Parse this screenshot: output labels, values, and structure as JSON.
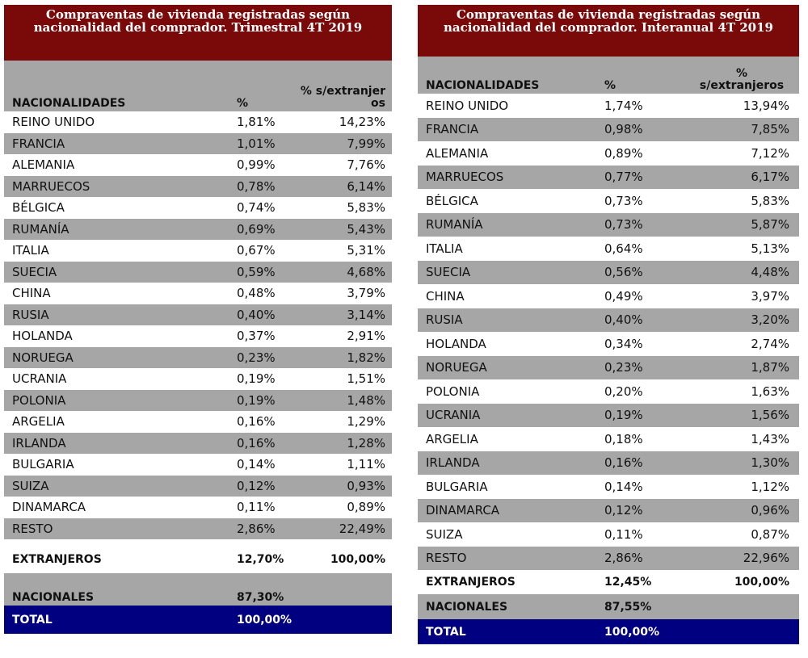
{
  "left": {
    "title": "Compraventas de vivienda registradas según nacionalidad del comprador. Trimestral 4T 2019",
    "headers": [
      "NACIONALIDADES",
      "%",
      "% s/extranjer os"
    ],
    "rows": [
      [
        "REINO UNIDO",
        "1,81%",
        "14,23%"
      ],
      [
        "FRANCIA",
        "1,01%",
        "7,99%"
      ],
      [
        "ALEMANIA",
        "0,99%",
        "7,76%"
      ],
      [
        "MARRUECOS",
        "0,78%",
        "6,14%"
      ],
      [
        "BÉLGICA",
        "0,74%",
        "5,83%"
      ],
      [
        "RUMANÍA",
        "0,69%",
        "5,43%"
      ],
      [
        "ITALIA",
        "0,67%",
        "5,31%"
      ],
      [
        "SUECIA",
        "0,59%",
        "4,68%"
      ],
      [
        "CHINA",
        "0,48%",
        "3,79%"
      ],
      [
        "RUSIA",
        "0,40%",
        "3,14%"
      ],
      [
        "HOLANDA",
        "0,37%",
        "2,91%"
      ],
      [
        "NORUEGA",
        "0,23%",
        "1,82%"
      ],
      [
        "UCRANIA",
        "0,19%",
        "1,51%"
      ],
      [
        "POLONIA",
        "0,19%",
        "1,48%"
      ],
      [
        "ARGELIA",
        "0,16%",
        "1,29%"
      ],
      [
        "IRLANDA",
        "0,16%",
        "1,28%"
      ],
      [
        "BULGARIA",
        "0,14%",
        "1,11%"
      ],
      [
        "SUIZA",
        "0,12%",
        "0,93%"
      ],
      [
        "DINAMARCA",
        "0,11%",
        "0,89%"
      ],
      [
        "RESTO",
        "2,86%",
        "22,49%"
      ]
    ],
    "extranjeros": [
      "EXTRANJEROS",
      "12,70%",
      "100,00%"
    ],
    "nacionales": [
      "NACIONALES",
      "87,30%"
    ],
    "total": [
      "TOTAL",
      "100,00%"
    ]
  },
  "right": {
    "title": "Compraventas de vivienda registradas según nacionalidad del comprador. Interanual 4T 2019",
    "headers": [
      "NACIONALIDADES",
      "%",
      "% s/extranjeros"
    ],
    "rows": [
      [
        "REINO UNIDO",
        "1,74%",
        "13,94%"
      ],
      [
        "FRANCIA",
        "0,98%",
        "7,85%"
      ],
      [
        "ALEMANIA",
        "0,89%",
        "7,12%"
      ],
      [
        "MARRUECOS",
        "0,77%",
        "6,17%"
      ],
      [
        "BÉLGICA",
        "0,73%",
        "5,83%"
      ],
      [
        "RUMANÍA",
        "0,73%",
        "5,87%"
      ],
      [
        "ITALIA",
        "0,64%",
        "5,13%"
      ],
      [
        "SUECIA",
        "0,56%",
        "4,48%"
      ],
      [
        "CHINA",
        "0,49%",
        "3,97%"
      ],
      [
        "RUSIA",
        "0,40%",
        "3,20%"
      ],
      [
        "HOLANDA",
        "0,34%",
        "2,74%"
      ],
      [
        "NORUEGA",
        "0,23%",
        "1,87%"
      ],
      [
        "POLONIA",
        "0,20%",
        "1,63%"
      ],
      [
        "UCRANIA",
        "0,19%",
        "1,56%"
      ],
      [
        "ARGELIA",
        "0,18%",
        "1,43%"
      ],
      [
        "IRLANDA",
        "0,16%",
        "1,30%"
      ],
      [
        "BULGARIA",
        "0,14%",
        "1,12%"
      ],
      [
        "DINAMARCA",
        "0,12%",
        "0,96%"
      ],
      [
        "SUIZA",
        "0,11%",
        "0,87%"
      ],
      [
        "RESTO",
        "2,86%",
        "22,96%"
      ]
    ],
    "extranjeros": [
      "EXTRANJEROS",
      "12,45%",
      "100,00%"
    ],
    "nacionales": [
      "NACIONALES",
      "87,55%"
    ],
    "total": [
      "TOTAL",
      "100,00%"
    ]
  },
  "colors": {
    "title_bg": "#7a0a0a",
    "stripe": "#a6a6a6",
    "total_bg": "#000080"
  }
}
